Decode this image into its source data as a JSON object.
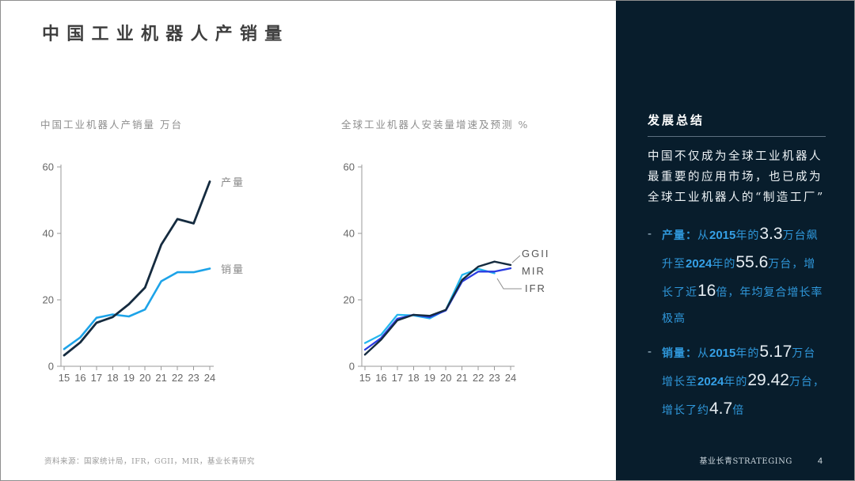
{
  "slide": {
    "title": "中国工业机器人产销量",
    "source_note": "资料来源：国家统计局，IFR，GGII，MIR，基业长青研究"
  },
  "chart_data": [
    {
      "type": "line",
      "title": "中国工业机器人产销量 万台",
      "categories": [
        "15",
        "16",
        "17",
        "18",
        "19",
        "20",
        "21",
        "22",
        "23",
        "24"
      ],
      "ylim": [
        0,
        60
      ],
      "yticks": [
        0,
        20,
        40,
        60
      ],
      "grid": false,
      "legend_position": "line-end-labels",
      "label_color": "#8a8a8a",
      "series": [
        {
          "name": "销量",
          "color": "#1da3e8",
          "width": 2.6,
          "values": [
            5.2,
            8.7,
            14.6,
            15.6,
            15.0,
            17.1,
            25.6,
            28.3,
            28.3,
            29.4
          ],
          "label": {
            "x": 242,
            "y": 150
          }
        },
        {
          "name": "产量",
          "color": "#152b3f",
          "width": 2.8,
          "values": [
            3.3,
            7.2,
            13.1,
            14.8,
            18.7,
            23.7,
            36.6,
            44.3,
            43.0,
            55.6
          ],
          "label": {
            "x": 242,
            "y": 40
          }
        }
      ]
    },
    {
      "type": "line",
      "title": "全球工业机器人安装量增速及预测 %",
      "categories": [
        "15",
        "16",
        "17",
        "18",
        "19",
        "20",
        "21",
        "22",
        "23",
        "24"
      ],
      "ylim": [
        0,
        60
      ],
      "yticks": [
        0,
        20,
        40,
        60
      ],
      "grid": false,
      "legend_position": "line-end-labels",
      "label_color": "#555555",
      "series": [
        {
          "name": "IFR",
          "color": "#25b6ee",
          "width": 2.3,
          "values": [
            7.0,
            9.5,
            15.5,
            15.3,
            14.4,
            17.0,
            27.5,
            29.3,
            28.0,
            null
          ],
          "label": {
            "x": 246,
            "y": 174
          },
          "leader": [
            [
              211,
              157
            ],
            [
              219,
              170
            ],
            [
              242,
              170
            ]
          ]
        },
        {
          "name": "MIR",
          "color": "#2a3ce2",
          "width": 2.3,
          "values": [
            5.0,
            8.5,
            14.3,
            15.5,
            14.8,
            16.8,
            25.5,
            28.5,
            28.5,
            29.5
          ],
          "label": {
            "x": 242,
            "y": 152
          }
        },
        {
          "name": "GGII",
          "color": "#152b3f",
          "width": 2.4,
          "values": [
            3.5,
            8.0,
            13.8,
            15.5,
            15.2,
            17.0,
            26.0,
            30.0,
            31.5,
            30.5
          ],
          "label": {
            "x": 242,
            "y": 130
          },
          "leader": [
            [
              230,
              137
            ],
            [
              240,
              128
            ]
          ]
        }
      ]
    }
  ],
  "sidebar": {
    "heading": "发展总结",
    "summary": "中国不仅成为全球工业机器人最重要的应用市场，也已成为全球工业机器人的“制造工厂”",
    "bullets": [
      {
        "marker": "-",
        "segments": [
          {
            "t": "产量：",
            "s": "label"
          },
          {
            "t": "从",
            "s": "cn"
          },
          {
            "t": "2015",
            "s": "year"
          },
          {
            "t": "年的",
            "s": "cn"
          },
          {
            "t": "3.3",
            "s": "big"
          },
          {
            "t": "万台飙升至",
            "s": "cn"
          },
          {
            "t": "2024",
            "s": "year"
          },
          {
            "t": "年的",
            "s": "cn"
          },
          {
            "t": "55.6",
            "s": "big"
          },
          {
            "t": "万台，增长了近",
            "s": "cn"
          },
          {
            "t": "16",
            "s": "big"
          },
          {
            "t": "倍，年均复合增长率极高",
            "s": "cn"
          }
        ]
      },
      {
        "marker": "-",
        "segments": [
          {
            "t": "销量：",
            "s": "label"
          },
          {
            "t": "从",
            "s": "cn"
          },
          {
            "t": "2015",
            "s": "year"
          },
          {
            "t": "年的",
            "s": "cn"
          },
          {
            "t": "5.17",
            "s": "big"
          },
          {
            "t": "万台增长至",
            "s": "cn"
          },
          {
            "t": "2024",
            "s": "year"
          },
          {
            "t": "年的",
            "s": "cn"
          },
          {
            "t": "29.42",
            "s": "big"
          },
          {
            "t": "万台，增长了约",
            "s": "cn"
          },
          {
            "t": "4.7",
            "s": "big"
          },
          {
            "t": "倍",
            "s": "cn"
          }
        ]
      }
    ],
    "brand": "基业长青STRATEGING",
    "page_number": "4",
    "colors": {
      "background": "#081d2c",
      "accent_blue": "#2f97da",
      "number_white": "#e6edf2"
    }
  }
}
